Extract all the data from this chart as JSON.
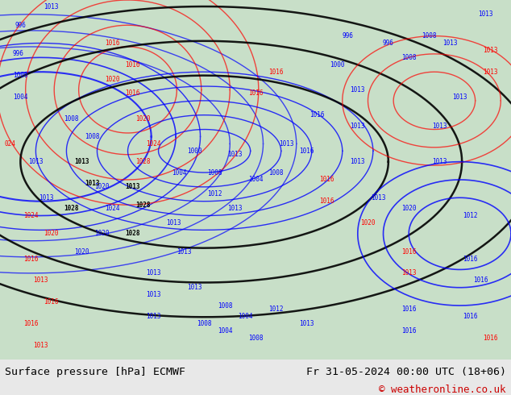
{
  "title_left": "Surface pressure [hPa] ECMWF",
  "title_right": "Fr 31-05-2024 00:00 UTC (18+06)",
  "copyright": "© weatheronline.co.uk",
  "bg_color": "#e8e8e8",
  "map_bg_color": "#c8dfc8",
  "fig_width": 6.34,
  "fig_height": 4.9,
  "dpi": 100,
  "bottom_bar_color": "#f0f0f0",
  "title_fontsize": 9.5,
  "copyright_fontsize": 9,
  "copyright_color": "#cc0000",
  "border_color": "#888888"
}
